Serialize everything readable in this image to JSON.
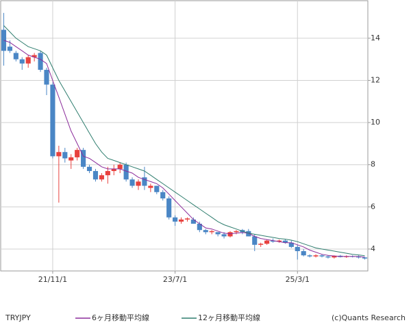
{
  "chart_data": {
    "type": "candlestick",
    "categories": [
      null,
      null,
      null,
      null,
      null,
      null,
      null,
      null,
      "21/11/1",
      null,
      null,
      null,
      null,
      null,
      null,
      null,
      null,
      null,
      null,
      null,
      null,
      null,
      null,
      null,
      null,
      null,
      null,
      null,
      "23/7/1",
      null,
      null,
      null,
      null,
      null,
      null,
      null,
      null,
      null,
      null,
      null,
      null,
      null,
      null,
      null,
      null,
      null,
      null,
      null,
      "25/3/1",
      null,
      null,
      null,
      null,
      null,
      null,
      null,
      null,
      null,
      null,
      null
    ],
    "series": [
      {
        "name": "TRYJPY",
        "up_color": "#e8413e",
        "down_color": "#4a86c5",
        "open": [
          14.4,
          13.6,
          13.3,
          13.0,
          12.8,
          13.1,
          13.3,
          12.5,
          11.8,
          8.4,
          8.6,
          8.2,
          8.35,
          8.7,
          7.9,
          7.7,
          7.3,
          7.5,
          7.7,
          7.8,
          8.0,
          7.3,
          7.0,
          7.4,
          6.9,
          7.0,
          6.7,
          6.4,
          5.5,
          5.3,
          5.4,
          5.4,
          5.2,
          4.9,
          4.8,
          4.8,
          4.7,
          4.6,
          4.8,
          4.9,
          4.85,
          4.6,
          4.2,
          4.25,
          4.4,
          4.35,
          4.4,
          4.3,
          4.1,
          3.9,
          3.7,
          3.65,
          3.7,
          3.65,
          3.6,
          3.68,
          3.62,
          3.66,
          3.65,
          3.6
        ],
        "high": [
          15.2,
          13.9,
          13.4,
          13.1,
          13.2,
          13.3,
          13.4,
          12.6,
          11.9,
          8.9,
          8.8,
          8.5,
          8.8,
          8.8,
          8.0,
          7.8,
          7.6,
          7.9,
          8.0,
          8.1,
          8.1,
          7.4,
          7.3,
          7.9,
          7.1,
          7.0,
          6.8,
          6.5,
          5.6,
          5.5,
          5.5,
          5.5,
          5.3,
          4.95,
          4.9,
          4.8,
          4.8,
          4.85,
          4.9,
          4.95,
          4.95,
          4.7,
          4.3,
          4.45,
          4.5,
          4.45,
          4.45,
          4.4,
          4.2,
          4.0,
          3.75,
          3.75,
          3.75,
          3.7,
          3.7,
          3.72,
          3.7,
          3.7,
          3.7,
          3.62
        ],
        "low": [
          12.7,
          13.3,
          12.9,
          12.5,
          12.6,
          12.9,
          12.4,
          11.3,
          8.3,
          6.2,
          8.1,
          7.8,
          8.2,
          7.8,
          7.6,
          7.2,
          7.2,
          7.1,
          7.5,
          7.6,
          7.2,
          6.9,
          6.8,
          6.8,
          6.7,
          6.6,
          6.3,
          5.4,
          5.1,
          5.2,
          5.3,
          5.2,
          4.8,
          4.7,
          4.7,
          4.6,
          4.5,
          4.55,
          4.7,
          4.7,
          4.6,
          3.9,
          4.1,
          4.2,
          4.3,
          4.3,
          4.25,
          4.05,
          3.5,
          3.65,
          3.6,
          3.6,
          3.6,
          3.55,
          3.55,
          3.6,
          3.58,
          3.6,
          3.55,
          3.5
        ],
        "close": [
          13.4,
          13.4,
          13.0,
          12.8,
          13.1,
          13.2,
          12.5,
          11.8,
          8.4,
          8.6,
          8.3,
          8.35,
          8.7,
          7.9,
          7.7,
          7.3,
          7.5,
          7.7,
          7.8,
          8.0,
          7.3,
          7.0,
          7.2,
          7.0,
          7.0,
          6.7,
          6.4,
          5.5,
          5.3,
          5.4,
          5.45,
          5.2,
          4.9,
          4.8,
          4.85,
          4.7,
          4.6,
          4.8,
          4.85,
          4.8,
          4.6,
          4.2,
          4.25,
          4.4,
          4.35,
          4.4,
          4.3,
          4.1,
          3.9,
          3.7,
          3.65,
          3.7,
          3.65,
          3.6,
          3.68,
          3.62,
          3.66,
          3.65,
          3.6,
          3.55
        ]
      }
    ],
    "lines": [
      {
        "name": "6ヶ月移動平均線",
        "color": "#8b2c9b",
        "values": [
          13.9,
          13.8,
          13.6,
          13.4,
          13.2,
          13.1,
          13.0,
          12.8,
          12.0,
          11.2,
          10.4,
          9.6,
          9.0,
          8.4,
          8.3,
          8.1,
          7.9,
          7.8,
          7.8,
          7.8,
          7.7,
          7.6,
          7.4,
          7.3,
          7.2,
          7.1,
          6.9,
          6.6,
          6.3,
          6.0,
          5.7,
          5.4,
          5.2,
          5.0,
          4.95,
          4.85,
          4.75,
          4.72,
          4.75,
          4.78,
          4.75,
          4.6,
          4.5,
          4.45,
          4.4,
          4.35,
          4.3,
          4.3,
          4.2,
          4.1,
          3.95,
          3.85,
          3.75,
          3.7,
          3.67,
          3.65,
          3.65,
          3.65,
          3.64,
          3.62
        ]
      },
      {
        "name": "12ヶ月移動平均線",
        "color": "#2e7d6e",
        "values": [
          14.6,
          14.3,
          14.0,
          13.8,
          13.6,
          13.5,
          13.4,
          13.2,
          12.6,
          12.0,
          11.5,
          11.0,
          10.5,
          10.0,
          9.5,
          9.0,
          8.6,
          8.3,
          8.2,
          8.1,
          8.0,
          7.9,
          7.8,
          7.7,
          7.5,
          7.3,
          7.1,
          6.9,
          6.7,
          6.5,
          6.3,
          6.1,
          5.9,
          5.7,
          5.5,
          5.3,
          5.15,
          5.05,
          4.95,
          4.85,
          4.75,
          4.7,
          4.65,
          4.6,
          4.55,
          4.5,
          4.47,
          4.42,
          4.35,
          4.25,
          4.15,
          4.05,
          4.0,
          3.95,
          3.9,
          3.85,
          3.8,
          3.75,
          3.72,
          3.68
        ]
      }
    ],
    "ylim": [
      2.96,
      15.78
    ],
    "yticks": [
      4,
      6,
      8,
      10,
      12,
      14
    ],
    "grid": true,
    "credit": "(c)Quants Research"
  }
}
